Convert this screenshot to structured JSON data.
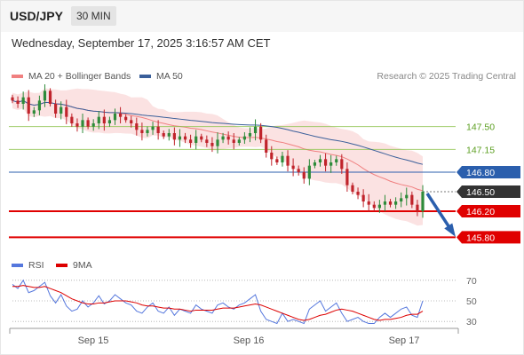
{
  "header": {
    "symbol": "USD/JPY",
    "timeframe": "30 MIN",
    "datetime": "Wednesday, September 17, 2025 3:16:57 AM CET"
  },
  "legend": {
    "ma20": {
      "label": "MA 20 + Bollinger Bands",
      "color": "#f08080"
    },
    "ma50": {
      "label": "MA 50",
      "color": "#3a5f9a"
    }
  },
  "credit": "Research © 2025 Trading Central",
  "rsi_legend": {
    "rsi": {
      "label": "RSI",
      "color": "#5577dd"
    },
    "ma9": {
      "label": "9MA",
      "color": "#dd0000"
    }
  },
  "colors": {
    "up": "#2e8b3a",
    "down": "#c0232b",
    "support": "#e00000",
    "resistance": "#8bc34a",
    "pivot": "#2b5fad",
    "arrow": "#2b5fad"
  },
  "chart_data": [
    {
      "type": "candlestick",
      "ylim": [
        145.6,
        148.15
      ],
      "x_ticks": [
        "Sep 15",
        "Sep 16",
        "Sep 17"
      ],
      "levels": [
        {
          "value": 147.5,
          "label": "147.50",
          "kind": "resistance"
        },
        {
          "value": 147.15,
          "label": "147.15",
          "kind": "resistance"
        },
        {
          "value": 146.8,
          "label": "146.80",
          "kind": "pivot"
        },
        {
          "value": 146.5,
          "label": "146.50",
          "kind": "last"
        },
        {
          "value": 146.2,
          "label": "146.20",
          "kind": "support"
        },
        {
          "value": 145.8,
          "label": "145.80",
          "kind": "support"
        }
      ],
      "close": [
        147.9,
        147.85,
        147.95,
        147.7,
        147.75,
        147.9,
        148.05,
        147.85,
        147.7,
        147.8,
        147.65,
        147.55,
        147.5,
        147.6,
        147.5,
        147.55,
        147.65,
        147.55,
        147.6,
        147.7,
        147.65,
        147.6,
        147.55,
        147.45,
        147.4,
        147.45,
        147.5,
        147.4,
        147.35,
        147.4,
        147.3,
        147.35,
        147.3,
        147.25,
        147.35,
        147.3,
        147.25,
        147.2,
        147.3,
        147.35,
        147.3,
        147.25,
        147.3,
        147.35,
        147.4,
        147.5,
        147.3,
        147.1,
        147.0,
        146.95,
        147.05,
        146.9,
        146.85,
        146.8,
        146.7,
        146.9,
        146.95,
        147.0,
        146.9,
        146.95,
        147.0,
        146.85,
        146.6,
        146.5,
        146.45,
        146.35,
        146.3,
        146.25,
        146.3,
        146.35,
        146.3,
        146.35,
        146.4,
        146.45,
        146.3,
        146.2,
        146.5
      ]
    },
    {
      "type": "line",
      "title": "RSI",
      "ylim": [
        25,
        75
      ],
      "y_ticks": [
        30,
        50,
        70
      ],
      "series": [
        {
          "name": "RSI",
          "values": [
            66,
            62,
            70,
            58,
            60,
            64,
            68,
            55,
            48,
            56,
            45,
            40,
            42,
            50,
            44,
            48,
            55,
            47,
            50,
            56,
            52,
            48,
            46,
            40,
            38,
            44,
            48,
            40,
            38,
            44,
            36,
            42,
            40,
            38,
            46,
            42,
            40,
            38,
            46,
            48,
            44,
            42,
            46,
            48,
            52,
            56,
            40,
            32,
            30,
            28,
            38,
            30,
            32,
            30,
            28,
            42,
            46,
            50,
            40,
            44,
            48,
            38,
            30,
            32,
            34,
            30,
            28,
            28,
            34,
            38,
            34,
            38,
            42,
            44,
            36,
            34,
            50
          ]
        },
        {
          "name": "9MA",
          "values": [
            64,
            64,
            65,
            64,
            63,
            63,
            64,
            62,
            60,
            58,
            55,
            52,
            50,
            48,
            47,
            47,
            48,
            48,
            49,
            50,
            50,
            50,
            49,
            48,
            46,
            45,
            45,
            44,
            43,
            43,
            42,
            42,
            41,
            40,
            41,
            41,
            41,
            41,
            42,
            43,
            43,
            43,
            44,
            45,
            46,
            47,
            46,
            44,
            42,
            40,
            38,
            36,
            34,
            32,
            31,
            32,
            34,
            36,
            37,
            39,
            41,
            42,
            41,
            40,
            38,
            36,
            34,
            32,
            31,
            32,
            32,
            33,
            34,
            36,
            37,
            37,
            40
          ]
        }
      ]
    }
  ]
}
